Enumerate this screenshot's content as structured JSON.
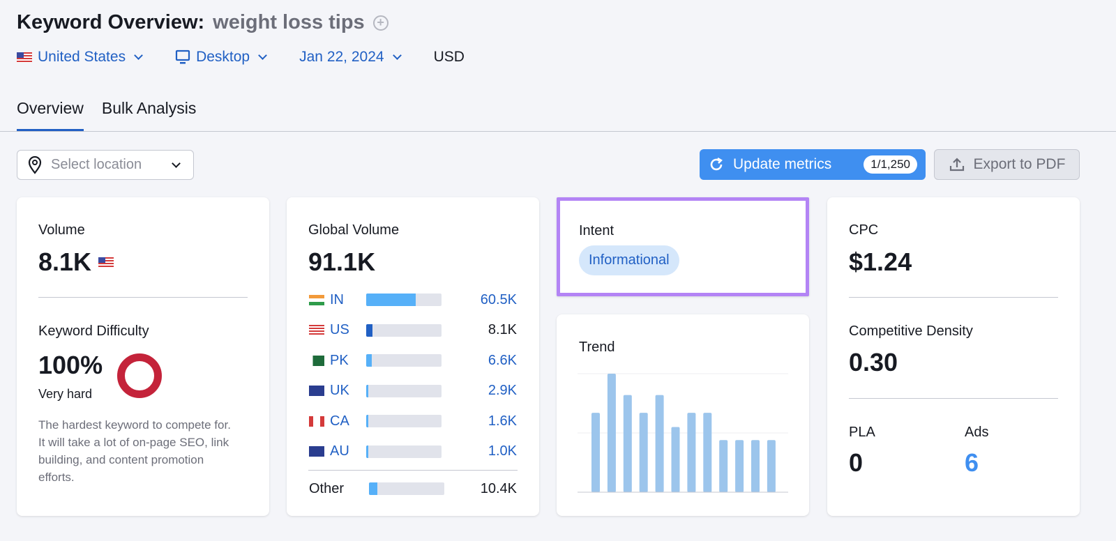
{
  "header": {
    "title": "Keyword Overview:",
    "keyword": "weight loss tips"
  },
  "filters": {
    "country": "United States",
    "device": "Desktop",
    "date": "Jan 22, 2024",
    "currency": "USD"
  },
  "tabs": [
    {
      "label": "Overview",
      "active": true
    },
    {
      "label": "Bulk Analysis",
      "active": false
    }
  ],
  "toolbar": {
    "location_placeholder": "Select location",
    "update_label": "Update metrics",
    "update_count": "1/1,250",
    "export_label": "Export to PDF"
  },
  "volume": {
    "label": "Volume",
    "value": "8.1K"
  },
  "difficulty": {
    "label": "Keyword Difficulty",
    "value": "100%",
    "level": "Very hard",
    "description": "The hardest keyword to compete for. It will take a lot of on-page SEO, link building, and content promotion efforts.",
    "color": "#c4233a"
  },
  "global": {
    "label": "Global Volume",
    "value": "91.1K",
    "countries": [
      {
        "code": "IN",
        "value": "60.5K",
        "share": 0.66,
        "link": true
      },
      {
        "code": "US",
        "value": "8.1K",
        "share": 0.08,
        "link": false
      },
      {
        "code": "PK",
        "value": "6.6K",
        "share": 0.07,
        "link": true
      },
      {
        "code": "UK",
        "value": "2.9K",
        "share": 0.03,
        "link": true
      },
      {
        "code": "CA",
        "value": "1.6K",
        "share": 0.03,
        "link": true
      },
      {
        "code": "AU",
        "value": "1.0K",
        "share": 0.03,
        "link": true
      }
    ],
    "other": {
      "label": "Other",
      "value": "10.4K",
      "share": 0.11
    }
  },
  "intent": {
    "label": "Intent",
    "value": "Informational"
  },
  "trend": {
    "label": "Trend",
    "values": [
      0.67,
      1.0,
      0.82,
      0.67,
      0.82,
      0.55,
      0.67,
      0.67,
      0.44,
      0.44,
      0.44,
      0.44
    ],
    "color": "#9cc5ec"
  },
  "cpc": {
    "label": "CPC",
    "value": "$1.24"
  },
  "density": {
    "label": "Competitive Density",
    "value": "0.30"
  },
  "pla": {
    "label": "PLA",
    "value": "0"
  },
  "ads": {
    "label": "Ads",
    "value": "6"
  },
  "colors": {
    "accent": "#2160c4",
    "button": "#3f8ff0",
    "highlight": "#b384f5"
  }
}
